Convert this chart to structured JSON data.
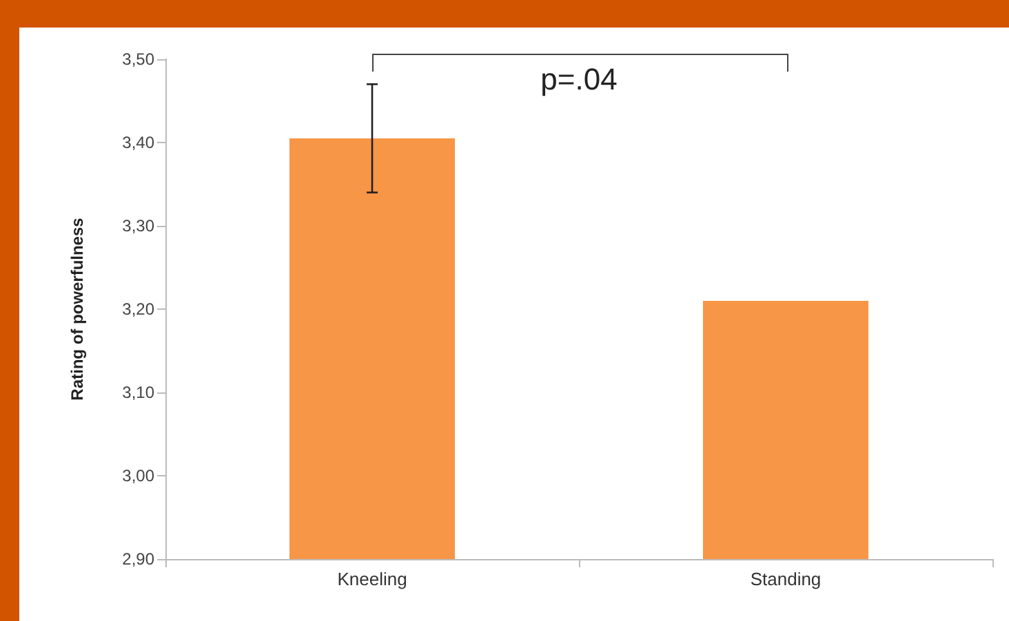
{
  "chart_data": {
    "type": "bar",
    "ylabel": "Rating of powerfulness",
    "categories": [
      "Kneeling",
      "Standing"
    ],
    "values": [
      3.405,
      3.21
    ],
    "errors": [
      0.065,
      null
    ],
    "color": "#f79646",
    "ylim": [
      2.9,
      3.5
    ],
    "yticks": [
      {
        "value": 2.9,
        "label": "2,90"
      },
      {
        "value": 3.0,
        "label": "3,00"
      },
      {
        "value": 3.1,
        "label": "3,10"
      },
      {
        "value": 3.2,
        "label": "3,20"
      },
      {
        "value": 3.3,
        "label": "3,30"
      },
      {
        "value": 3.4,
        "label": "3,40"
      },
      {
        "value": 3.5,
        "label": "3,50"
      }
    ],
    "grid": false,
    "annotations": [
      "p=.04"
    ]
  }
}
